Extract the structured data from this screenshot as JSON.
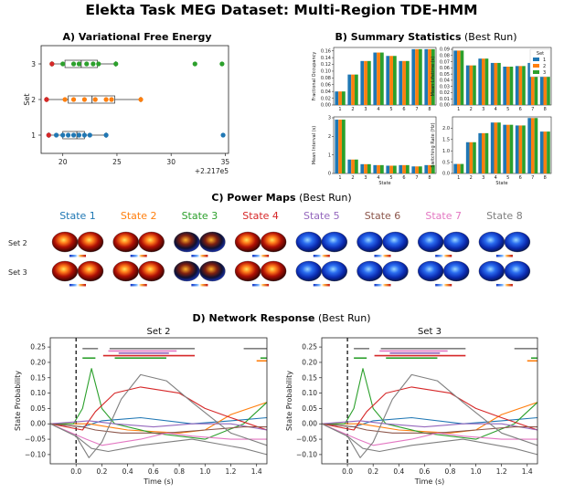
{
  "figure": {
    "title": "Elekta Task MEG Dataset: Multi-Region TDE-HMM"
  },
  "panel_a": {
    "label": "A) Variational Free Energy",
    "chart_data": {
      "type": "scatter",
      "ylabel": "Set",
      "y_categories": [
        "1",
        "2",
        "3"
      ],
      "x_ticks": [
        "20",
        "25",
        "30",
        "35"
      ],
      "x_offset_label": "+2.217e5",
      "xlim": [
        18,
        35.3
      ],
      "series": [
        {
          "set": "1",
          "color": "#1f77b4",
          "box": [
            20.0,
            21.3,
            22.0
          ],
          "points": [
            18.7,
            19.4,
            20.0,
            20.5,
            21.0,
            21.5,
            22.0,
            22.5,
            24.0,
            34.8
          ]
        },
        {
          "set": "2",
          "color": "#ff7f0e",
          "box": [
            20.5,
            22.7,
            24.8
          ],
          "points": [
            18.5,
            20.2,
            21.0,
            22.0,
            23.0,
            24.0,
            24.5,
            27.2
          ]
        },
        {
          "set": "3",
          "color": "#2ca02c",
          "box": [
            20.2,
            21.7,
            23.2
          ],
          "points": [
            19.0,
            20.0,
            21.0,
            21.5,
            22.2,
            22.8,
            23.3,
            24.9,
            32.2,
            34.7
          ]
        }
      ],
      "min_point_color": "#d62728",
      "min_points": [
        {
          "set": "1",
          "x": 18.7
        },
        {
          "set": "2",
          "x": 18.5
        },
        {
          "set": "3",
          "x": 19.0
        }
      ]
    }
  },
  "panel_b": {
    "label_bold": "B) Summary Statistics",
    "label_light": " (Best Run)",
    "legend_title": "Set",
    "legend_items": [
      "1",
      "2",
      "3"
    ],
    "colors": [
      "#1f77b4",
      "#ff7f0e",
      "#2ca02c"
    ],
    "xlabel": "State",
    "states": [
      "1",
      "2",
      "3",
      "4",
      "5",
      "6",
      "7",
      "8"
    ],
    "chart_data": [
      {
        "type": "bar",
        "ylabel": "Fractional Occupancy",
        "ylim": [
          0,
          0.17
        ],
        "yticks": [
          "0.00",
          "0.02",
          "0.04",
          "0.06",
          "0.08",
          "0.10",
          "0.12",
          "0.14",
          "0.16"
        ],
        "ytick_values": [
          0,
          0.02,
          0.04,
          0.06,
          0.08,
          0.1,
          0.12,
          0.14,
          0.16
        ],
        "series": [
          {
            "values": [
              0.04,
              0.09,
              0.13,
              0.155,
              0.145,
              0.13,
              0.165,
              0.165
            ]
          },
          {
            "values": [
              0.04,
              0.09,
              0.13,
              0.155,
              0.145,
              0.13,
              0.165,
              0.165
            ]
          },
          {
            "values": [
              0.04,
              0.09,
              0.13,
              0.155,
              0.145,
              0.13,
              0.165,
              0.165
            ]
          }
        ]
      },
      {
        "type": "bar",
        "ylabel": "Mean Lifetime (s)",
        "ylim": [
          0,
          0.093
        ],
        "yticks": [
          "0.00",
          "0.01",
          "0.02",
          "0.03",
          "0.04",
          "0.05",
          "0.06",
          "0.07",
          "0.08",
          "0.09"
        ],
        "ytick_values": [
          0,
          0.01,
          0.02,
          0.03,
          0.04,
          0.05,
          0.06,
          0.07,
          0.08,
          0.09
        ],
        "series": [
          {
            "values": [
              0.088,
              0.064,
              0.075,
              0.068,
              0.062,
              0.063,
              0.068,
              0.086
            ]
          },
          {
            "values": [
              0.088,
              0.064,
              0.075,
              0.068,
              0.062,
              0.063,
              0.068,
              0.086
            ]
          },
          {
            "values": [
              0.088,
              0.064,
              0.075,
              0.068,
              0.062,
              0.063,
              0.068,
              0.086
            ]
          }
        ]
      },
      {
        "type": "bar",
        "ylabel": "Mean Interval (s)",
        "ylim": [
          0,
          3.05
        ],
        "yticks": [
          "0",
          "1",
          "2",
          "3"
        ],
        "ytick_values": [
          0,
          1,
          2,
          3
        ],
        "series": [
          {
            "values": [
              2.9,
              0.75,
              0.5,
              0.45,
              0.42,
              0.45,
              0.38,
              0.45
            ]
          },
          {
            "values": [
              2.9,
              0.75,
              0.5,
              0.45,
              0.42,
              0.45,
              0.38,
              0.45
            ]
          },
          {
            "values": [
              2.9,
              0.75,
              0.5,
              0.45,
              0.42,
              0.45,
              0.38,
              0.45
            ]
          }
        ]
      },
      {
        "type": "bar",
        "ylabel": "Switching Rate (Hz)",
        "ylim": [
          0,
          2.5
        ],
        "yticks": [
          "0.0",
          "0.5",
          "1.0",
          "1.5",
          "2.0"
        ],
        "ytick_values": [
          0,
          0.5,
          1.0,
          1.5,
          2.0
        ],
        "series": [
          {
            "values": [
              0.42,
              1.38,
              1.78,
              2.25,
              2.15,
              2.12,
              2.45,
              1.85
            ]
          },
          {
            "values": [
              0.42,
              1.38,
              1.78,
              2.25,
              2.15,
              2.12,
              2.45,
              1.85
            ]
          },
          {
            "values": [
              0.42,
              1.38,
              1.78,
              2.25,
              2.15,
              2.12,
              2.45,
              1.85
            ]
          }
        ]
      }
    ]
  },
  "panel_c": {
    "label_bold": "C) Power Maps",
    "label_light": " (Best Run)",
    "states": [
      {
        "label": "State 1",
        "color": "#1f77b4"
      },
      {
        "label": "State 2",
        "color": "#ff7f0e"
      },
      {
        "label": "State 3",
        "color": "#2ca02c"
      },
      {
        "label": "State 4",
        "color": "#d62728"
      },
      {
        "label": "State 5",
        "color": "#9467bd"
      },
      {
        "label": "State 6",
        "color": "#8c564b"
      },
      {
        "label": "State 7",
        "color": "#e377c2"
      },
      {
        "label": "State 8",
        "color": "#7f7f7f"
      }
    ],
    "rows": [
      "Set 2",
      "Set 3"
    ],
    "map_style": [
      "hot",
      "hot",
      "mix",
      "hot",
      "cool",
      "cool",
      "cool",
      "cool"
    ]
  },
  "panel_d": {
    "label_bold": "D) Network Response",
    "label_light": " (Best Run)",
    "ylabel": "State Probability",
    "xlabel": "Time (s)",
    "x_ticks": [
      "0.0",
      "0.2",
      "0.4",
      "0.6",
      "0.8",
      "1.0",
      "1.2",
      "1.4"
    ],
    "x_tick_values": [
      0,
      0.2,
      0.4,
      0.6,
      0.8,
      1.0,
      1.2,
      1.4
    ],
    "y_ticks": [
      "0.25",
      "0.20",
      "0.15",
      "0.10",
      "0.05",
      "0.00",
      "−0.05",
      "−0.10"
    ],
    "y_tick_values": [
      0.25,
      0.2,
      0.15,
      0.1,
      0.05,
      0.0,
      -0.05,
      -0.1
    ],
    "xlim": [
      -0.2,
      1.48
    ],
    "ylim": [
      -0.13,
      0.28
    ],
    "chart_data": [
      {
        "type": "line",
        "title": "Set 2",
        "series": [
          {
            "color": "#1f77b4",
            "x": [
              -0.2,
              0.05,
              0.2,
              0.5,
              0.9,
              1.2,
              1.48
            ],
            "y": [
              0.0,
              -0.01,
              0.01,
              0.02,
              0.0,
              0.01,
              0.02
            ]
          },
          {
            "color": "#ff7f0e",
            "x": [
              -0.2,
              0.1,
              0.4,
              0.8,
              1.0,
              1.2,
              1.48
            ],
            "y": [
              0.0,
              0.0,
              -0.02,
              -0.03,
              -0.02,
              0.03,
              0.07
            ]
          },
          {
            "color": "#2ca02c",
            "x": [
              -0.2,
              -0.02,
              0.05,
              0.12,
              0.2,
              0.3,
              0.6,
              1.0,
              1.3,
              1.48
            ],
            "y": [
              0.0,
              0.0,
              0.05,
              0.18,
              0.05,
              0.0,
              -0.03,
              -0.05,
              0.0,
              0.07
            ]
          },
          {
            "color": "#d62728",
            "x": [
              -0.2,
              0.05,
              0.15,
              0.3,
              0.5,
              0.8,
              1.0,
              1.2,
              1.48
            ],
            "y": [
              0.0,
              -0.02,
              0.04,
              0.1,
              0.12,
              0.1,
              0.05,
              0.02,
              -0.02
            ]
          },
          {
            "color": "#9467bd",
            "x": [
              -0.2,
              0.1,
              0.3,
              0.6,
              0.9,
              1.2,
              1.48
            ],
            "y": [
              0.0,
              0.01,
              0.0,
              -0.01,
              0.0,
              0.0,
              -0.02
            ]
          },
          {
            "color": "#8c564b",
            "x": [
              -0.2,
              0.05,
              0.15,
              0.35,
              0.7,
              1.0,
              1.3,
              1.48
            ],
            "y": [
              0.0,
              -0.01,
              -0.02,
              -0.03,
              -0.03,
              -0.02,
              -0.01,
              -0.01
            ]
          },
          {
            "color": "#e377c2",
            "x": [
              -0.2,
              0.08,
              0.2,
              0.5,
              0.7,
              0.9,
              1.2,
              1.48
            ],
            "y": [
              0.0,
              -0.05,
              -0.07,
              -0.05,
              -0.03,
              -0.04,
              -0.05,
              -0.05
            ]
          },
          {
            "color": "#7f7f7f",
            "x": [
              -0.2,
              0.0,
              0.1,
              0.2,
              0.35,
              0.5,
              0.7,
              0.9,
              1.2,
              1.48
            ],
            "y": [
              0.0,
              -0.04,
              -0.11,
              -0.06,
              0.08,
              0.16,
              0.14,
              0.07,
              -0.03,
              -0.07
            ]
          },
          {
            "color": "#7f7f7f",
            "x": [
              -0.2,
              0.0,
              0.12,
              0.25,
              0.5,
              0.9,
              1.3,
              1.48
            ],
            "y": [
              0.0,
              -0.04,
              -0.08,
              -0.09,
              -0.07,
              -0.05,
              -0.08,
              -0.1
            ]
          }
        ],
        "sig_bars": [
          {
            "color": "#7f7f7f",
            "y": 0.245,
            "x0": 0.05,
            "x1": 0.17
          },
          {
            "color": "#7f7f7f",
            "y": 0.245,
            "x0": 0.26,
            "x1": 0.92
          },
          {
            "color": "#7f7f7f",
            "y": 0.245,
            "x0": 1.3,
            "x1": 1.48
          },
          {
            "color": "#e377c2",
            "y": 0.237,
            "x0": 0.25,
            "x1": 0.78
          },
          {
            "color": "#9467bd",
            "y": 0.23,
            "x0": 0.33,
            "x1": 0.72
          },
          {
            "color": "#d62728",
            "y": 0.222,
            "x0": 0.21,
            "x1": 0.92
          },
          {
            "color": "#2ca02c",
            "y": 0.214,
            "x0": 0.05,
            "x1": 0.15
          },
          {
            "color": "#2ca02c",
            "y": 0.214,
            "x0": 0.3,
            "x1": 0.7
          },
          {
            "color": "#2ca02c",
            "y": 0.214,
            "x0": 1.43,
            "x1": 1.48
          },
          {
            "color": "#ff7f0e",
            "y": 0.205,
            "x0": 1.4,
            "x1": 1.48
          }
        ]
      },
      {
        "type": "line",
        "title": "Set 3",
        "series": [
          {
            "color": "#1f77b4",
            "x": [
              -0.2,
              0.05,
              0.2,
              0.5,
              0.9,
              1.2,
              1.48
            ],
            "y": [
              0.0,
              -0.01,
              0.01,
              0.02,
              0.0,
              0.01,
              0.02
            ]
          },
          {
            "color": "#ff7f0e",
            "x": [
              -0.2,
              0.1,
              0.4,
              0.8,
              1.0,
              1.2,
              1.48
            ],
            "y": [
              0.0,
              0.0,
              -0.02,
              -0.03,
              -0.02,
              0.03,
              0.07
            ]
          },
          {
            "color": "#2ca02c",
            "x": [
              -0.2,
              -0.02,
              0.05,
              0.12,
              0.2,
              0.3,
              0.6,
              1.0,
              1.3,
              1.48
            ],
            "y": [
              0.0,
              0.0,
              0.05,
              0.18,
              0.05,
              0.0,
              -0.03,
              -0.05,
              0.0,
              0.07
            ]
          },
          {
            "color": "#d62728",
            "x": [
              -0.2,
              0.05,
              0.15,
              0.3,
              0.5,
              0.8,
              1.0,
              1.2,
              1.48
            ],
            "y": [
              0.0,
              -0.02,
              0.04,
              0.1,
              0.12,
              0.1,
              0.05,
              0.02,
              -0.02
            ]
          },
          {
            "color": "#9467bd",
            "x": [
              -0.2,
              0.1,
              0.3,
              0.6,
              0.9,
              1.2,
              1.48
            ],
            "y": [
              0.0,
              0.01,
              0.0,
              -0.01,
              0.0,
              0.0,
              -0.02
            ]
          },
          {
            "color": "#8c564b",
            "x": [
              -0.2,
              0.05,
              0.15,
              0.35,
              0.7,
              1.0,
              1.3,
              1.48
            ],
            "y": [
              0.0,
              -0.01,
              -0.02,
              -0.03,
              -0.03,
              -0.02,
              -0.01,
              -0.01
            ]
          },
          {
            "color": "#e377c2",
            "x": [
              -0.2,
              0.08,
              0.2,
              0.5,
              0.7,
              0.9,
              1.2,
              1.48
            ],
            "y": [
              0.0,
              -0.05,
              -0.07,
              -0.05,
              -0.03,
              -0.04,
              -0.05,
              -0.05
            ]
          },
          {
            "color": "#7f7f7f",
            "x": [
              -0.2,
              0.0,
              0.1,
              0.2,
              0.35,
              0.5,
              0.7,
              0.9,
              1.2,
              1.48
            ],
            "y": [
              0.0,
              -0.04,
              -0.11,
              -0.06,
              0.08,
              0.16,
              0.14,
              0.07,
              -0.03,
              -0.07
            ]
          },
          {
            "color": "#7f7f7f",
            "x": [
              -0.2,
              0.0,
              0.12,
              0.25,
              0.5,
              0.9,
              1.3,
              1.48
            ],
            "y": [
              0.0,
              -0.04,
              -0.08,
              -0.09,
              -0.07,
              -0.05,
              -0.08,
              -0.1
            ]
          }
        ],
        "sig_bars": [
          {
            "color": "#7f7f7f",
            "y": 0.245,
            "x0": 0.05,
            "x1": 0.17
          },
          {
            "color": "#7f7f7f",
            "y": 0.245,
            "x0": 0.26,
            "x1": 0.92
          },
          {
            "color": "#7f7f7f",
            "y": 0.245,
            "x0": 1.3,
            "x1": 1.48
          },
          {
            "color": "#e377c2",
            "y": 0.237,
            "x0": 0.25,
            "x1": 0.78
          },
          {
            "color": "#9467bd",
            "y": 0.23,
            "x0": 0.33,
            "x1": 0.72
          },
          {
            "color": "#d62728",
            "y": 0.222,
            "x0": 0.21,
            "x1": 0.92
          },
          {
            "color": "#2ca02c",
            "y": 0.214,
            "x0": 0.05,
            "x1": 0.15
          },
          {
            "color": "#2ca02c",
            "y": 0.214,
            "x0": 0.3,
            "x1": 0.7
          },
          {
            "color": "#2ca02c",
            "y": 0.214,
            "x0": 1.43,
            "x1": 1.48
          },
          {
            "color": "#ff7f0e",
            "y": 0.205,
            "x0": 1.4,
            "x1": 1.48
          }
        ]
      }
    ]
  }
}
